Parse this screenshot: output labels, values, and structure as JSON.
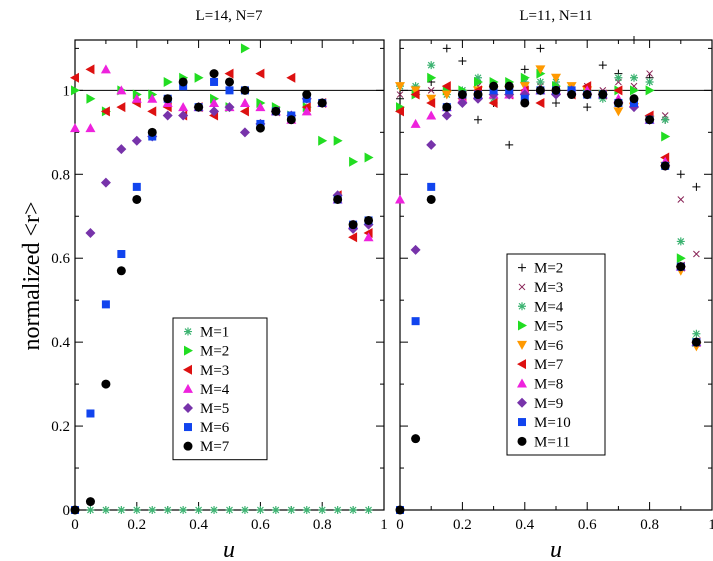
{
  "chart_data": [
    {
      "type": "scatter",
      "title": "L=14, N=7",
      "xlabel": "u",
      "ylabel": "normalized <r>",
      "xlim": [
        0,
        1
      ],
      "ylim": [
        0,
        1.12
      ],
      "x_ticks": [
        "0",
        "0.2",
        "0.4",
        "0.6",
        "0.8",
        "1"
      ],
      "y_ticks": [
        "0",
        "0.2",
        "0.4",
        "0.6",
        "0.8",
        "1"
      ],
      "reference_line": 1,
      "legend_position": "bottom-center",
      "series": [
        {
          "name": "M=1",
          "marker": "star",
          "color": "#3cb371",
          "x": [
            0,
            0.05,
            0.1,
            0.15,
            0.2,
            0.25,
            0.3,
            0.35,
            0.4,
            0.45,
            0.5,
            0.55,
            0.6,
            0.65,
            0.7,
            0.75,
            0.8,
            0.85,
            0.9,
            0.95
          ],
          "y": [
            0,
            0,
            0,
            0,
            0,
            0,
            0,
            0,
            0,
            0,
            0,
            0,
            0,
            0,
            0,
            0,
            0,
            0,
            0,
            0
          ]
        },
        {
          "name": "M=2",
          "marker": "triangle-right",
          "color": "#22dd22",
          "x": [
            0,
            0.05,
            0.1,
            0.15,
            0.2,
            0.25,
            0.3,
            0.35,
            0.4,
            0.45,
            0.5,
            0.55,
            0.6,
            0.65,
            0.7,
            0.75,
            0.8,
            0.85,
            0.9,
            0.95
          ],
          "y": [
            1.0,
            0.98,
            0.95,
            1.0,
            0.99,
            0.99,
            1.02,
            1.03,
            1.03,
            0.98,
            0.96,
            1.1,
            0.97,
            0.96,
            0.94,
            0.96,
            0.88,
            0.88,
            0.83,
            0.84
          ]
        },
        {
          "name": "M=3",
          "marker": "triangle-left",
          "color": "#dd1111",
          "x": [
            0,
            0.05,
            0.1,
            0.15,
            0.2,
            0.25,
            0.3,
            0.35,
            0.4,
            0.45,
            0.5,
            0.55,
            0.6,
            0.65,
            0.7,
            0.75,
            0.8,
            0.85,
            0.9,
            0.95
          ],
          "y": [
            1.03,
            1.05,
            0.95,
            0.96,
            0.97,
            0.95,
            0.96,
            0.94,
            0.96,
            0.94,
            1.04,
            0.95,
            1.04,
            0.95,
            1.03,
            0.96,
            0.97,
            0.75,
            0.65,
            0.66
          ]
        },
        {
          "name": "M=4",
          "marker": "triangle-up",
          "color": "#ee22dd",
          "x": [
            0,
            0.05,
            0.1,
            0.15,
            0.2,
            0.25,
            0.3,
            0.35,
            0.4,
            0.45,
            0.5,
            0.55,
            0.6,
            0.65,
            0.7,
            0.75,
            0.8,
            0.85,
            0.9,
            0.95
          ],
          "y": [
            0.91,
            0.91,
            1.05,
            1.0,
            0.98,
            0.98,
            0.97,
            0.96,
            0.96,
            0.97,
            0.96,
            0.97,
            0.96,
            0.95,
            0.93,
            0.95,
            0.97,
            0.74,
            0.68,
            0.65
          ]
        },
        {
          "name": "M=5",
          "marker": "diamond",
          "color": "#7733aa",
          "x": [
            0.05,
            0.1,
            0.15,
            0.2,
            0.25,
            0.3,
            0.35,
            0.4,
            0.45,
            0.5,
            0.55,
            0.6,
            0.65,
            0.7,
            0.75,
            0.8,
            0.85,
            0.9,
            0.95
          ],
          "y": [
            0.66,
            0.78,
            0.86,
            0.88,
            0.89,
            0.94,
            0.94,
            0.96,
            0.95,
            0.96,
            0.9,
            0.92,
            0.95,
            0.94,
            0.98,
            0.97,
            0.75,
            0.67,
            0.68
          ]
        },
        {
          "name": "M=6",
          "marker": "square",
          "color": "#1144ee",
          "x": [
            0,
            0.05,
            0.1,
            0.15,
            0.2,
            0.25,
            0.3,
            0.35,
            0.4,
            0.45,
            0.5,
            0.55,
            0.6,
            0.65,
            0.7,
            0.75,
            0.8,
            0.85,
            0.9,
            0.95
          ],
          "y": [
            0,
            0.23,
            0.49,
            0.61,
            0.77,
            0.89,
            0.98,
            1.01,
            0.96,
            1.02,
            1.0,
            1.0,
            0.92,
            0.95,
            0.94,
            0.98,
            0.97,
            0.74,
            0.68,
            0.69
          ]
        },
        {
          "name": "M=7",
          "marker": "circle",
          "color": "#000000",
          "x": [
            0,
            0.05,
            0.1,
            0.15,
            0.2,
            0.25,
            0.3,
            0.35,
            0.4,
            0.45,
            0.5,
            0.55,
            0.6,
            0.65,
            0.7,
            0.75,
            0.8,
            0.85,
            0.9,
            0.95
          ],
          "y": [
            0,
            0.02,
            0.3,
            0.57,
            0.74,
            0.9,
            0.98,
            1.02,
            0.96,
            1.04,
            1.02,
            1.0,
            0.91,
            0.95,
            0.93,
            0.99,
            0.97,
            0.74,
            0.68,
            0.69
          ]
        }
      ]
    },
    {
      "type": "scatter",
      "title": "L=11, N=11",
      "xlabel": "u",
      "ylabel": "",
      "xlim": [
        0,
        1
      ],
      "ylim": [
        0,
        1.12
      ],
      "x_ticks": [
        "0",
        "0.2",
        "0.4",
        "0.6",
        "0.8",
        "1"
      ],
      "y_ticks": [],
      "reference_line": 1,
      "legend_position": "bottom-center",
      "series": [
        {
          "name": "M=2",
          "marker": "plus",
          "color": "#000000",
          "x": [
            0,
            0.05,
            0.1,
            0.15,
            0.2,
            0.25,
            0.3,
            0.35,
            0.4,
            0.45,
            0.5,
            0.55,
            0.6,
            0.65,
            0.7,
            0.75,
            0.8,
            0.85,
            0.9,
            0.95
          ],
          "y": [
            0.98,
            1.0,
            1.02,
            1.1,
            1.07,
            0.93,
            0.97,
            0.87,
            1.05,
            1.1,
            0.97,
            0.99,
            0.96,
            1.06,
            1.04,
            1.12,
            1.03,
            0.93,
            0.8,
            0.77
          ]
        },
        {
          "name": "M=3",
          "marker": "cross",
          "color": "#882255",
          "x": [
            0,
            0.05,
            0.1,
            0.15,
            0.2,
            0.25,
            0.3,
            0.35,
            0.4,
            0.45,
            0.5,
            0.55,
            0.6,
            0.65,
            0.7,
            0.75,
            0.8,
            0.85,
            0.9,
            0.95
          ],
          "y": [
            0.99,
            1.0,
            1.0,
            1.0,
            1.0,
            1.01,
            1.01,
            1.0,
            0.99,
            1.01,
            1.0,
            1.0,
            1.01,
            1.0,
            1.02,
            1.01,
            1.04,
            0.94,
            0.74,
            0.61
          ]
        },
        {
          "name": "M=4",
          "marker": "star",
          "color": "#3cb371",
          "x": [
            0,
            0.05,
            0.1,
            0.15,
            0.2,
            0.25,
            0.3,
            0.35,
            0.4,
            0.45,
            0.5,
            0.55,
            0.6,
            0.65,
            0.7,
            0.75,
            0.8,
            0.85,
            0.9,
            0.95
          ],
          "y": [
            1.01,
            1.01,
            1.06,
            0.99,
            1.0,
            1.03,
            0.98,
            1.01,
            1.02,
            1.02,
            1.02,
            0.99,
            1.0,
            0.98,
            1.03,
            1.03,
            1.02,
            0.93,
            0.64,
            0.42
          ]
        },
        {
          "name": "M=5",
          "marker": "triangle-right",
          "color": "#22dd22",
          "x": [
            0,
            0.05,
            0.1,
            0.15,
            0.2,
            0.25,
            0.3,
            0.35,
            0.4,
            0.45,
            0.5,
            0.55,
            0.6,
            0.65,
            0.7,
            0.75,
            0.8,
            0.85,
            0.9,
            0.95
          ],
          "y": [
            0.96,
            0.99,
            1.03,
            1.0,
            1.0,
            1.02,
            1.02,
            1.02,
            1.03,
            1.04,
            1.01,
            1.0,
            1.0,
            0.99,
            1.0,
            1.0,
            1.0,
            0.89,
            0.6,
            0.4
          ]
        },
        {
          "name": "M=6",
          "marker": "triangle-down",
          "color": "#ff9900",
          "x": [
            0,
            0.05,
            0.1,
            0.15,
            0.2,
            0.25,
            0.3,
            0.35,
            0.4,
            0.45,
            0.5,
            0.55,
            0.6,
            0.65,
            0.7,
            0.75,
            0.8,
            0.85,
            0.9,
            0.95
          ],
          "y": [
            1.01,
            1.0,
            0.98,
            0.99,
            0.99,
            1.0,
            1.0,
            1.0,
            1.01,
            1.05,
            1.03,
            1.01,
            1.0,
            0.99,
            0.95,
            0.96,
            0.93,
            0.82,
            0.57,
            0.39
          ]
        },
        {
          "name": "M=7",
          "marker": "triangle-left",
          "color": "#dd1111",
          "x": [
            0,
            0.05,
            0.1,
            0.15,
            0.2,
            0.25,
            0.3,
            0.35,
            0.4,
            0.45,
            0.5,
            0.55,
            0.6,
            0.65,
            0.7,
            0.75,
            0.8,
            0.85,
            0.9,
            0.95
          ],
          "y": [
            0.95,
            0.99,
            0.97,
            1.01,
            0.98,
            1.0,
            0.97,
            0.99,
            1.0,
            0.97,
            1.0,
            0.99,
            1.01,
            0.99,
            1.0,
            0.97,
            0.94,
            0.84,
            0.58,
            0.4
          ]
        },
        {
          "name": "M=8",
          "marker": "triangle-up",
          "color": "#ee22dd",
          "x": [
            0,
            0.05,
            0.1,
            0.15,
            0.2,
            0.25,
            0.3,
            0.35,
            0.4,
            0.45,
            0.5,
            0.55,
            0.6,
            0.65,
            0.7,
            0.75,
            0.8,
            0.85,
            0.9,
            0.95
          ],
          "y": [
            0.74,
            0.92,
            0.94,
            0.96,
            0.98,
            0.99,
            0.99,
            0.99,
            1.0,
            1.0,
            1.0,
            1.0,
            1.0,
            0.99,
            0.98,
            0.97,
            0.93,
            0.83,
            0.58,
            0.4
          ]
        },
        {
          "name": "M=9",
          "marker": "diamond",
          "color": "#7733aa",
          "x": [
            0.05,
            0.1,
            0.15,
            0.2,
            0.25,
            0.3,
            0.35,
            0.4,
            0.45,
            0.5,
            0.55,
            0.6,
            0.65,
            0.7,
            0.75,
            0.8,
            0.85,
            0.9,
            0.95
          ],
          "y": [
            0.62,
            0.87,
            0.94,
            0.97,
            0.98,
            0.99,
            0.99,
            0.99,
            1.0,
            0.99,
            1.0,
            0.99,
            0.99,
            0.97,
            0.96,
            0.93,
            0.82,
            0.58,
            0.4
          ]
        },
        {
          "name": "M=10",
          "marker": "square",
          "color": "#1144ee",
          "x": [
            0,
            0.05,
            0.1,
            0.15,
            0.2,
            0.25,
            0.3,
            0.35,
            0.4,
            0.45,
            0.5,
            0.55,
            0.6,
            0.65,
            0.7,
            0.75,
            0.8,
            0.85,
            0.9,
            0.95
          ],
          "y": [
            0,
            0.45,
            0.77,
            0.96,
            0.99,
            0.99,
            1.0,
            1.0,
            0.98,
            1.0,
            1.0,
            1.0,
            0.99,
            0.99,
            0.97,
            0.97,
            0.93,
            0.82,
            0.58,
            0.4
          ]
        },
        {
          "name": "M=11",
          "marker": "circle",
          "color": "#000000",
          "x": [
            0,
            0.05,
            0.1,
            0.15,
            0.2,
            0.25,
            0.3,
            0.35,
            0.4,
            0.45,
            0.5,
            0.55,
            0.6,
            0.65,
            0.7,
            0.75,
            0.8,
            0.85,
            0.9,
            0.95
          ],
          "y": [
            0,
            0.17,
            0.74,
            0.96,
            0.99,
            0.99,
            1.01,
            1.01,
            0.97,
            1.0,
            1.0,
            0.99,
            0.99,
            0.99,
            0.97,
            0.98,
            0.93,
            0.82,
            0.58,
            0.4
          ]
        }
      ]
    }
  ]
}
